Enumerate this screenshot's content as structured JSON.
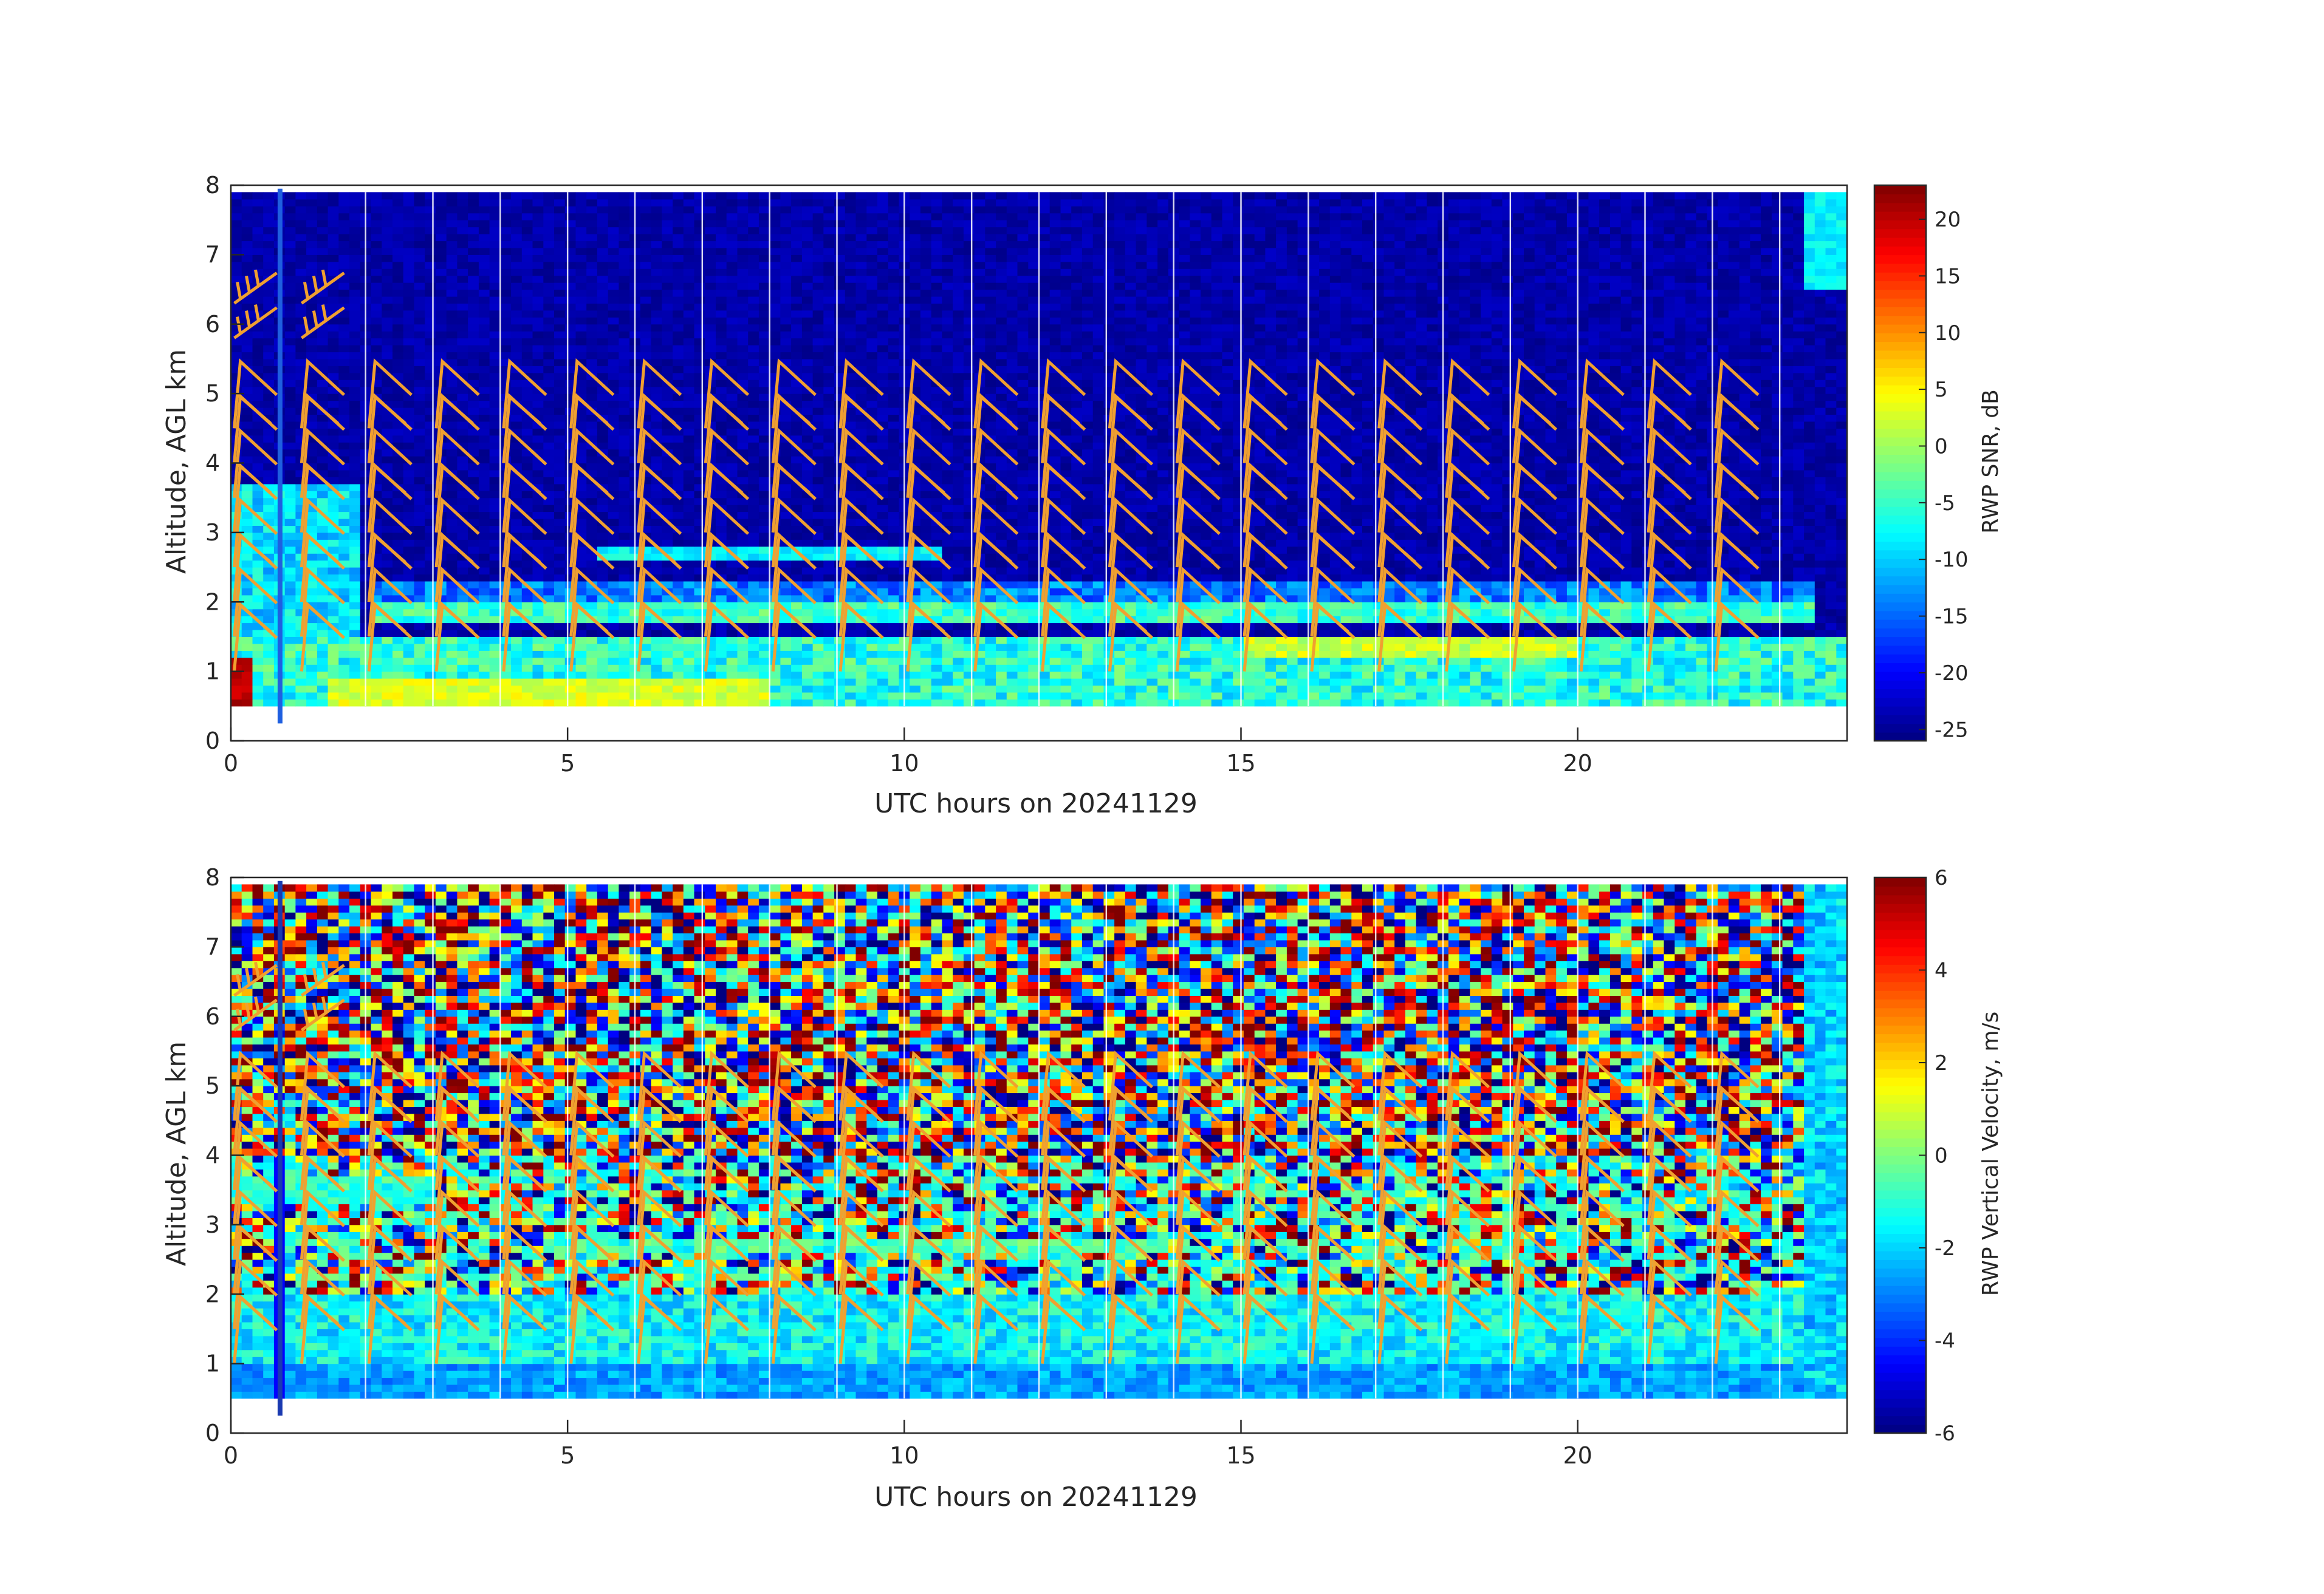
{
  "chart_data": [
    {
      "type": "heatmap",
      "title": "",
      "xlabel": "UTC hours on 20241129",
      "ylabel": "Altitude, AGL km",
      "xlim": [
        0,
        24
      ],
      "ylim": [
        0,
        8
      ],
      "x_ticks": [
        0,
        5,
        10,
        15,
        20
      ],
      "y_ticks": [
        0,
        1,
        2,
        3,
        4,
        5,
        6,
        7,
        8
      ],
      "colorbar": {
        "label": "RWP SNR, dB",
        "range": [
          -26,
          23
        ],
        "ticks": [
          20,
          15,
          10,
          5,
          0,
          -5,
          -10,
          -15,
          -20,
          -25
        ],
        "colormap": "jet"
      },
      "data_extent": {
        "x": [
          0,
          24
        ],
        "y": [
          0.5,
          7.9
        ]
      },
      "features": [
        {
          "description_value": "background",
          "value": -24
        },
        {
          "layer_top_km": 3.7,
          "x_range": [
            0,
            2
          ],
          "value": -8
        },
        {
          "layer_km": [
            1.7,
            2.0
          ],
          "x_range": [
            2,
            23.5
          ],
          "value": -5
        },
        {
          "layer_km": [
            0.5,
            1.3
          ],
          "x_range": [
            0,
            24
          ],
          "value": -2
        },
        {
          "layer_km": [
            0.6,
            0.9
          ],
          "x_range": [
            1.5,
            8
          ],
          "value": 3
        },
        {
          "layer_km": [
            1.2,
            1.5
          ],
          "x_range": [
            15,
            20
          ],
          "value": 2
        },
        {
          "layer_km": [
            2.6,
            2.8
          ],
          "x_range": [
            5.5,
            10.5
          ],
          "value": -8
        },
        {
          "patch_km": [
            6.5,
            7.9
          ],
          "x_range": [
            23.3,
            24
          ],
          "value": -8
        }
      ],
      "vertical_profile_lines_hours": [
        2,
        3,
        4,
        5,
        6,
        7,
        8,
        9,
        10,
        11,
        12,
        13,
        14,
        15,
        16,
        17,
        18,
        19,
        20,
        21,
        22,
        23
      ],
      "wind_barbs": {
        "color": "#f0a030",
        "times_hours": [
          0,
          1,
          2,
          3,
          4,
          5,
          6,
          7,
          8,
          9,
          10,
          11,
          12,
          13,
          14,
          15,
          16,
          17,
          18,
          19,
          20,
          21,
          22
        ],
        "heights_km": [
          1.0,
          1.5,
          2.0,
          2.5,
          3.0,
          3.5,
          4.0,
          4.5
        ],
        "upper_heights_km": [
          5.8,
          6.3
        ],
        "upper_times_hours": [
          0,
          1
        ]
      }
    },
    {
      "type": "heatmap",
      "title": "",
      "xlabel": "UTC hours on 20241129",
      "ylabel": "Altitude, AGL km",
      "xlim": [
        0,
        24
      ],
      "ylim": [
        0,
        8
      ],
      "x_ticks": [
        0,
        5,
        10,
        15,
        20
      ],
      "y_ticks": [
        0,
        1,
        2,
        3,
        4,
        5,
        6,
        7,
        8
      ],
      "colorbar": {
        "label": "RWP Vertical Velocity, m/s",
        "range": [
          -6,
          6
        ],
        "ticks": [
          6,
          4,
          2,
          0,
          -2,
          -4,
          -6
        ],
        "colormap": "jet"
      },
      "data_extent": {
        "x": [
          0,
          24
        ],
        "y": [
          0.5,
          7.9
        ]
      },
      "features": [
        {
          "noise_above_km": 4.0,
          "value_range": [
            -6,
            6
          ]
        },
        {
          "layer_km": [
            0.5,
            2.0
          ],
          "x_range": [
            0,
            24
          ],
          "value": -1.5
        },
        {
          "layer_km": [
            2.6,
            2.8
          ],
          "x_range": [
            5,
            14
          ],
          "value": -0.5
        },
        {
          "layer_km": [
            3.3,
            3.7
          ],
          "x_range": [
            0,
            3
          ],
          "value": -1
        },
        {
          "layer_km": [
            0.5,
            1.0
          ],
          "x_range": [
            0,
            24
          ],
          "value": -2.5
        }
      ],
      "vertical_profile_lines_hours": [
        2,
        3,
        4,
        5,
        6,
        7,
        8,
        9,
        10,
        11,
        12,
        13,
        14,
        15,
        16,
        17,
        18,
        19,
        20,
        21,
        22,
        23
      ],
      "wind_barbs": {
        "color": "#f0a030",
        "times_hours": [
          0,
          1,
          2,
          3,
          4,
          5,
          6,
          7,
          8,
          9,
          10,
          11,
          12,
          13,
          14,
          15,
          16,
          17,
          18,
          19,
          20,
          21,
          22
        ],
        "heights_km": [
          1.0,
          1.5,
          2.0,
          2.5,
          3.0,
          3.5,
          4.0,
          4.5
        ],
        "upper_heights_km": [
          5.8,
          6.3
        ],
        "upper_times_hours": [
          0,
          1
        ]
      }
    }
  ]
}
